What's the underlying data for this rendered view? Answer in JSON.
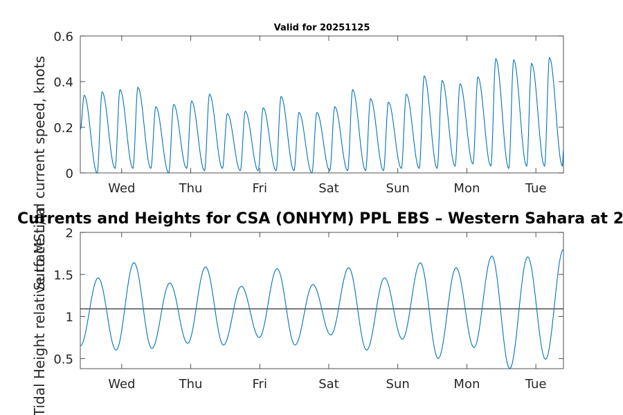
{
  "chart_data": [
    {
      "type": "line",
      "title": "Valid for 20251125",
      "ylabel": "Surface tidal current speed, knots",
      "ylim": [
        0,
        0.6
      ],
      "yticks": [
        "0",
        "0.2",
        "0.4",
        "0.6"
      ],
      "x_range_days": [
        0,
        7
      ],
      "x_day_ticks": [
        0.6,
        1.6,
        2.6,
        3.6,
        4.6,
        5.6,
        6.6
      ],
      "xtick_labels": [
        "Wed",
        "Thu",
        "Fri",
        "Sat",
        "Sun",
        "Mon",
        "Tue"
      ],
      "series": [
        {
          "name": "current speed",
          "color": "#0072BD",
          "peaks": [
            0.34,
            0.355,
            0.365,
            0.375,
            0.29,
            0.3,
            0.315,
            0.345,
            0.26,
            0.27,
            0.285,
            0.335,
            0.265,
            0.265,
            0.29,
            0.365,
            0.325,
            0.31,
            0.345,
            0.425,
            0.405,
            0.39,
            0.42,
            0.5,
            0.495,
            0.48,
            0.505
          ],
          "troughs": [
            0.0,
            0.02,
            0.02,
            0.02,
            0.0,
            0.02,
            0.01,
            0.02,
            0.01,
            0.01,
            0.01,
            0.01,
            0.0,
            0.01,
            0.01,
            0.01,
            0.01,
            0.02,
            0.02,
            0.02,
            0.03,
            0.04,
            0.03,
            0.02,
            0.03,
            0.03,
            0.03
          ],
          "start_value": 0.19,
          "end_value": 0.1
        }
      ]
    },
    {
      "type": "line",
      "title": "Currents and Heights for CSA (ONHYM) PPL EBS  – Western Sahara at 2",
      "ylabel": "Tidal Height relative to MSL, m",
      "ylim": [
        0.38,
        2.0
      ],
      "yticks": [
        "0.5",
        "1",
        "1.5",
        "2"
      ],
      "x_range_days": [
        0,
        7
      ],
      "x_day_ticks": [
        0.6,
        1.6,
        2.6,
        3.6,
        4.6,
        5.6,
        6.6
      ],
      "xtick_labels": [
        "Wed",
        "Thu",
        "Fri",
        "Sat",
        "Sun",
        "Mon",
        "Tue"
      ],
      "reference_line": {
        "value": 1.09,
        "color": "#000000"
      },
      "series": [
        {
          "name": "tidal height",
          "color": "#0072BD",
          "extremes": [
            0.65,
            1.46,
            0.6,
            1.64,
            0.62,
            1.4,
            0.68,
            1.59,
            0.66,
            1.36,
            0.75,
            1.57,
            0.66,
            1.38,
            0.78,
            1.58,
            0.6,
            1.46,
            0.73,
            1.64,
            0.5,
            1.58,
            0.63,
            1.72,
            0.38,
            1.71,
            0.49,
            1.8
          ]
        }
      ]
    }
  ]
}
